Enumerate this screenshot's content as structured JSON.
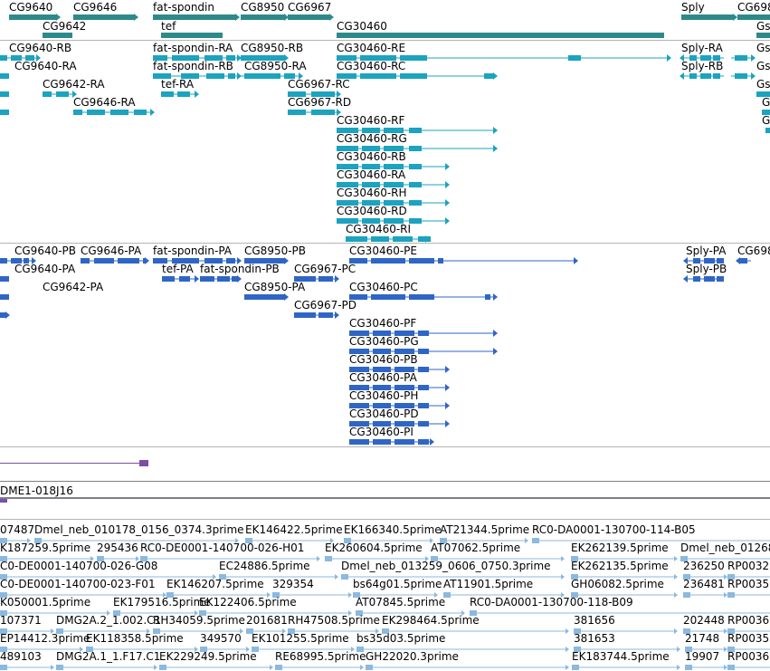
{
  "colors": {
    "gene": "#2e8a8a",
    "mrna": "#1ba3bf",
    "protein": "#2f66c5",
    "clone": "#7b4fa3",
    "est": "#8bb9df"
  },
  "tracks": {
    "genes": {
      "labels": [
        "CG9640",
        "CG9646",
        "fat-spondin",
        "CG8950",
        "CG6967",
        "CG9642",
        "tef",
        "CG30460",
        "Sply",
        "CG698",
        "Gs"
      ]
    },
    "transcripts": {
      "labels": [
        "CG9640-RB",
        "fat-spondin-RA",
        "CG8950-RB",
        "CG30460-RE",
        "Sply-RA",
        "CG9640-RA",
        "fat-spondin-RB",
        "CG8950-RA",
        "CG30460-RC",
        "Sply-RB",
        "CG9642-RA",
        "tef-RA",
        "CG6967-RC",
        "CG9646-RA",
        "CG6967-RD",
        "CG30460-RF",
        "CG30460-RG",
        "CG30460-RB",
        "CG30460-RA",
        "CG30460-RH",
        "CG30460-RD",
        "CG30460-RI",
        "Gs",
        "Gs",
        "Gs",
        "G",
        "G"
      ]
    },
    "proteins": {
      "labels": [
        "CG9640-PB",
        "CG9646-PA",
        "fat-spondin-PA",
        "CG8950-PB",
        "CG30460-PE",
        "Sply-PA",
        "CG698",
        "CG9640-PA",
        "tef-PA",
        "fat-spondin-PB",
        "CG6967-PC",
        "Sply-PB",
        "CG9642-PA",
        "CG8950-PA",
        "CG30460-PC",
        "CG6967-PD",
        "CG30460-PF",
        "CG30460-PG",
        "CG30460-PB",
        "CG30460-PA",
        "CG30460-PH",
        "CG30460-PD",
        "CG30460-PI"
      ]
    },
    "clones": {
      "labels": [
        "DME1-018J16"
      ]
    },
    "ests": {
      "labels": [
        "07487",
        "Dmel_neb_010178_0156_0374.3prime",
        "EK146422.5prime",
        "EK166340.5prime",
        "AT21344.5prime",
        "RC0-DA0001-130700-114-B05",
        "K187259.5prime",
        "295436",
        "RC0-DE0001-140700-026-H01",
        "EK260604.5prime",
        "AT07062.5prime",
        "EK262139.5prime",
        "Dmel_neb_01268",
        "C0-DE0001-140700-026-G08",
        "EC24886.5prime",
        "Dmel_neb_013259_0606_0750.3prime",
        "EK262135.5prime",
        "236250",
        "RP0032",
        "C0-DE0001-140700-023-F01",
        "EK146207.5prime",
        "329354",
        "bs64g01.5prime",
        "AT11901.5prime",
        "GH06082.5prime",
        "236481",
        "RP0035",
        "K050001.5prime",
        "EK179516.5prime",
        "EK122406.5prime",
        "AT07845.5prime",
        "RC0-DA0001-130700-118-B09",
        "107371",
        "DMG2A.2_1.002.C1",
        "RH34059.5prime",
        "201681",
        "RH47508.5prime",
        "EK298464.5prime",
        "381656",
        "202448",
        "RP0036",
        "EP14412.3prime",
        "EK118358.5prime",
        "349570",
        "EK101255.5prime",
        "bs35d03.5prime",
        "381653",
        "21748",
        "RP0035",
        "489103",
        "DMG2A.1_1.F17.C1",
        "EK229249.5prime",
        "RE68995.5prime",
        "GH22020.3prime",
        "EK183744.5prime",
        "19907",
        "RP0036"
      ]
    }
  }
}
